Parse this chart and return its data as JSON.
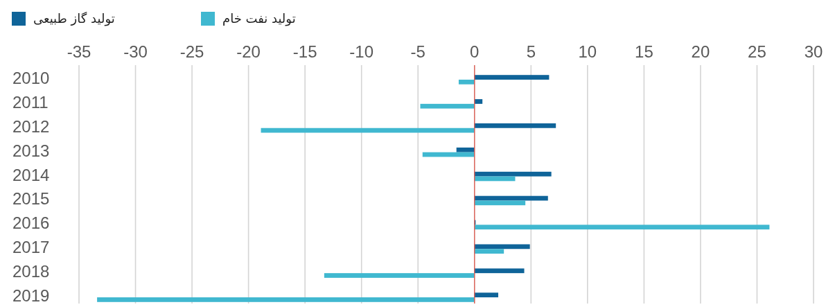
{
  "chart_data": {
    "type": "bar",
    "orientation": "horizontal",
    "categories": [
      "2010",
      "2011",
      "2012",
      "2013",
      "2014",
      "2015",
      "2016",
      "2017",
      "2018",
      "2019"
    ],
    "series": [
      {
        "name": "تولید گاز طبیعی",
        "color": "#0f6499",
        "values": [
          6.6,
          0.7,
          7.2,
          -1.6,
          6.8,
          6.5,
          0.1,
          4.9,
          4.4,
          2.1
        ]
      },
      {
        "name": "تولید نفت خام",
        "color": "#40b8d0",
        "values": [
          -1.4,
          -4.8,
          -18.9,
          -4.6,
          3.6,
          4.5,
          26.1,
          2.6,
          -13.3,
          -33.4
        ]
      }
    ],
    "xlim": [
      -35,
      30
    ],
    "xticks": [
      -35,
      -30,
      -25,
      -20,
      -15,
      -10,
      -5,
      0,
      5,
      10,
      15,
      20,
      25,
      30
    ],
    "grid": "x",
    "legend": "top left",
    "ref_lines": [
      {
        "axis": "x",
        "value": 0,
        "color": "#e0584c"
      }
    ]
  }
}
